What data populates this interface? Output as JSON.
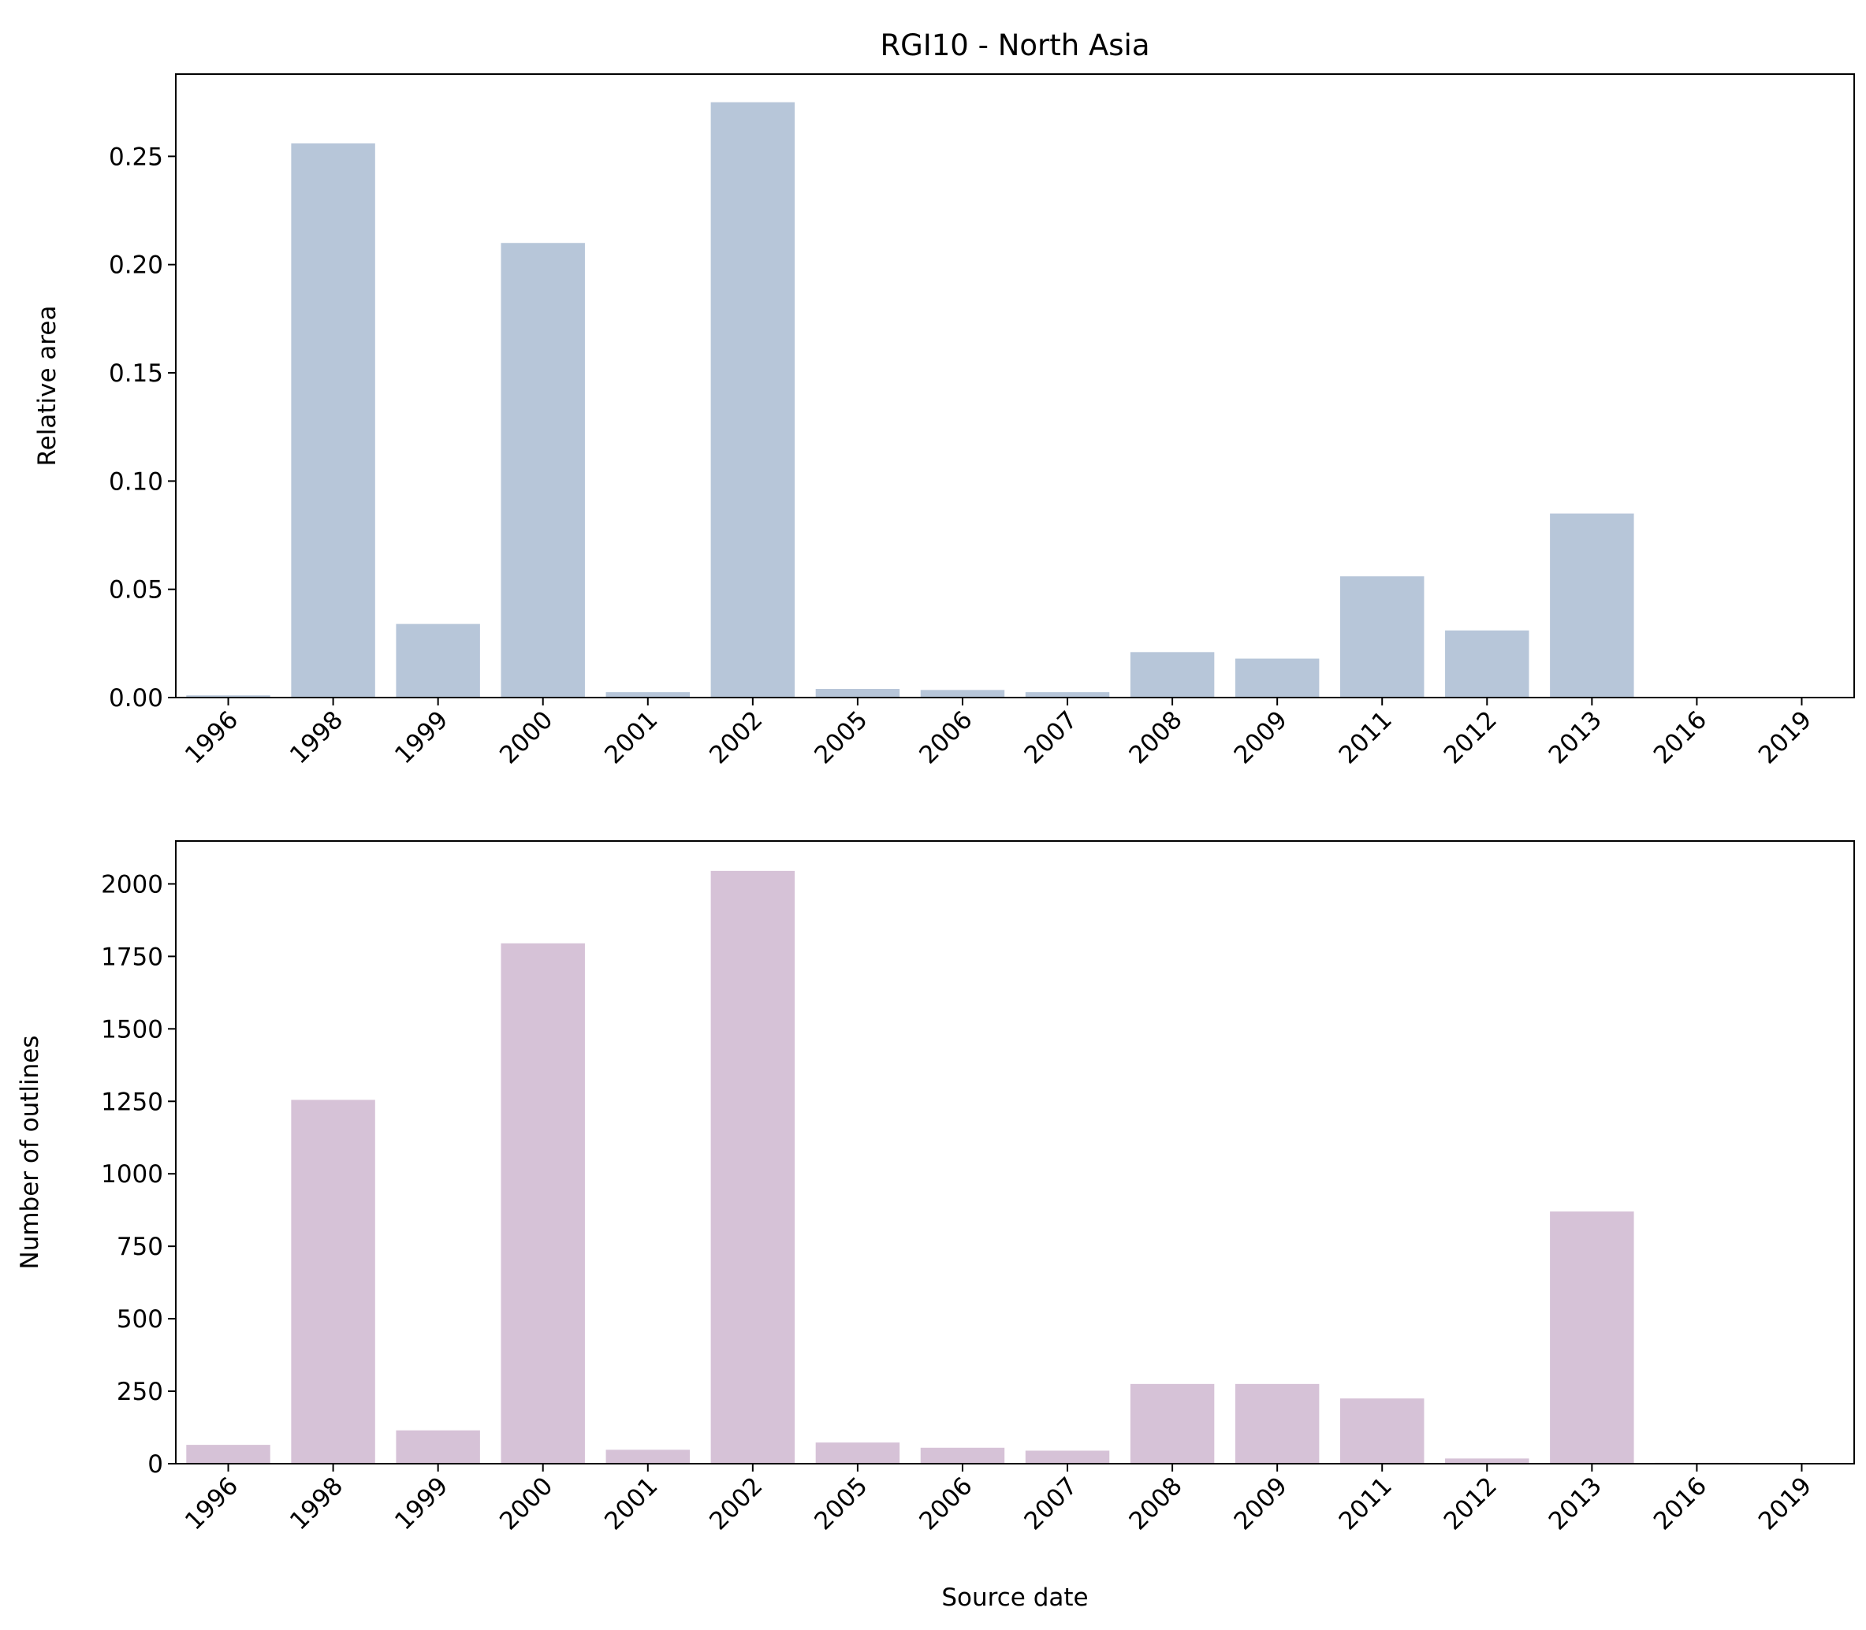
{
  "chart_data": [
    {
      "type": "bar",
      "title": "RGI10 - North Asia",
      "xlabel": "",
      "ylabel": "Relative area",
      "categories": [
        "1996",
        "1998",
        "1999",
        "2000",
        "2001",
        "2002",
        "2005",
        "2006",
        "2007",
        "2008",
        "2009",
        "2011",
        "2012",
        "2013",
        "2016",
        "2019"
      ],
      "values": [
        0.001,
        0.256,
        0.034,
        0.21,
        0.0025,
        0.275,
        0.004,
        0.0035,
        0.0025,
        0.021,
        0.018,
        0.056,
        0.031,
        0.085,
        0.0001,
        0.0001
      ],
      "ylim": [
        0,
        0.288
      ],
      "yticks": [
        0.0,
        0.05,
        0.1,
        0.15,
        0.2,
        0.25
      ],
      "ytick_labels": [
        "0.00",
        "0.05",
        "0.10",
        "0.15",
        "0.20",
        "0.25"
      ],
      "color": "#b7c6d9"
    },
    {
      "type": "bar",
      "title": "",
      "xlabel": "Source date",
      "ylabel": "Number of outlines",
      "categories": [
        "1996",
        "1998",
        "1999",
        "2000",
        "2001",
        "2002",
        "2005",
        "2006",
        "2007",
        "2008",
        "2009",
        "2011",
        "2012",
        "2013",
        "2016",
        "2019"
      ],
      "values": [
        65,
        1255,
        115,
        1795,
        48,
        2045,
        73,
        55,
        45,
        275,
        275,
        225,
        18,
        870,
        3,
        2
      ],
      "ylim": [
        0,
        2148
      ],
      "yticks": [
        0,
        250,
        500,
        750,
        1000,
        1250,
        1500,
        1750,
        2000
      ],
      "ytick_labels": [
        "0",
        "250",
        "500",
        "750",
        "1000",
        "1250",
        "1500",
        "1750",
        "2000"
      ],
      "color": "#d6c2d7"
    }
  ]
}
